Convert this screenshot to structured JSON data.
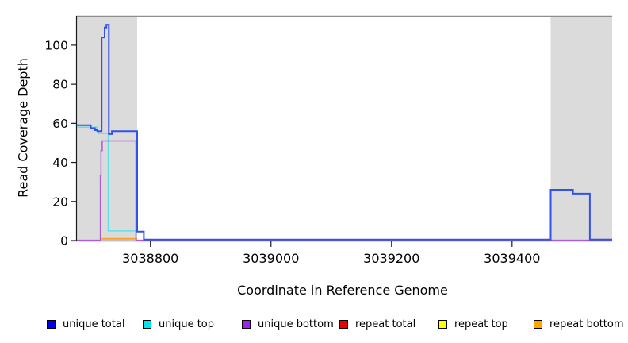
{
  "titles": {
    "y_axis": "Read Coverage Depth",
    "x_axis": "Coordinate in Reference Genome"
  },
  "chart_data": {
    "type": "line",
    "title": "",
    "xlabel": "Coordinate in Reference Genome",
    "ylabel": "Read Coverage Depth",
    "xlim": [
      3038678,
      3039566
    ],
    "ylim": [
      0,
      115
    ],
    "x_ticks": [
      3038800,
      3039000,
      3039200,
      3039400
    ],
    "y_ticks": [
      0,
      20,
      40,
      60,
      80,
      100
    ],
    "grid": false,
    "legend_position": "bottom",
    "axis_color": "#1a1a1a",
    "top_border_color": "#8f8f8f",
    "shaded_regions": [
      {
        "x0": 3038678,
        "x1": 3038778,
        "color": "#DBDBDB"
      },
      {
        "x0": 3039464,
        "x1": 3039566,
        "color": "#DBDBDB"
      }
    ],
    "series": [
      {
        "name": "repeat top",
        "key": "repeat-top",
        "color": "#FFE800",
        "width": 1.5,
        "segments": []
      },
      {
        "name": "repeat bottom",
        "key": "repeat-bottom",
        "color": "#FFA126",
        "width": 2,
        "segments": [
          [
            [
              3038719,
              0.9
            ],
            [
              3038778,
              0.9
            ]
          ]
        ]
      },
      {
        "name": "repeat total",
        "key": "repeat-total",
        "color": "#E8596B",
        "width": 1.5,
        "segments": [
          [
            [
              3038678,
              0
            ],
            [
              3038716,
              0
            ]
          ],
          [
            [
              3039464,
              0
            ],
            [
              3039529,
              0
            ]
          ]
        ]
      },
      {
        "name": "unique top",
        "key": "unique-top",
        "color": "#5FE0E8",
        "width": 1.5,
        "segments": [
          [
            [
              3038678,
              58
            ],
            [
              3038711,
              58
            ],
            [
              3038711,
              56
            ],
            [
              3038714,
              56
            ],
            [
              3038714,
              54.8
            ],
            [
              3038730,
              54.8
            ],
            [
              3038730,
              4.9
            ],
            [
              3038776,
              4.9
            ],
            [
              3038776,
              0.15
            ],
            [
              3039566,
              0.15
            ]
          ]
        ]
      },
      {
        "name": "unique bottom",
        "key": "unique-bottom",
        "color": "#A95CD8",
        "width": 1.5,
        "segments": [
          [
            [
              3038678,
              0.15
            ],
            [
              3038717,
              0.15
            ],
            [
              3038717,
              33
            ],
            [
              3038718,
              33
            ],
            [
              3038718,
              46
            ],
            [
              3038720,
              46
            ],
            [
              3038720,
              51
            ],
            [
              3038776,
              51
            ],
            [
              3038776,
              0.15
            ],
            [
              3039566,
              0.15
            ]
          ]
        ]
      },
      {
        "name": "unique total",
        "key": "unique-total",
        "color": "#3552E8",
        "width": 2,
        "segments": [
          [
            [
              3038678,
              59
            ],
            [
              3038701,
              59
            ],
            [
              3038701,
              57.5
            ],
            [
              3038708,
              57.5
            ],
            [
              3038708,
              56.5
            ],
            [
              3038712,
              56.5
            ],
            [
              3038712,
              56
            ],
            [
              3038719,
              56
            ],
            [
              3038719,
              104
            ],
            [
              3038724,
              104
            ],
            [
              3038724,
              109
            ],
            [
              3038727,
              109
            ],
            [
              3038727,
              110.5
            ],
            [
              3038731,
              110.5
            ],
            [
              3038731,
              54.5
            ],
            [
              3038736,
              54.5
            ],
            [
              3038736,
              56
            ],
            [
              3038778,
              56
            ],
            [
              3038778,
              4.6
            ],
            [
              3038789,
              4.6
            ],
            [
              3038789,
              0.5
            ],
            [
              3039464,
              0.5
            ],
            [
              3039464,
              26
            ],
            [
              3039501,
              26
            ],
            [
              3039501,
              24
            ],
            [
              3039529,
              24
            ],
            [
              3039529,
              0.5
            ],
            [
              3039566,
              0.5
            ]
          ]
        ]
      }
    ]
  },
  "legend": {
    "items": [
      {
        "label": "unique total",
        "swatch_color": "#0000EE"
      },
      {
        "label": "unique top",
        "swatch_color": "#00E5EE"
      },
      {
        "label": "unique bottom",
        "swatch_color": "#A020F0"
      },
      {
        "label": "repeat total",
        "swatch_color": "#EE0000"
      },
      {
        "label": "repeat top",
        "swatch_color": "#FFFF00"
      },
      {
        "label": "repeat bottom",
        "swatch_color": "#FFA500"
      }
    ]
  }
}
